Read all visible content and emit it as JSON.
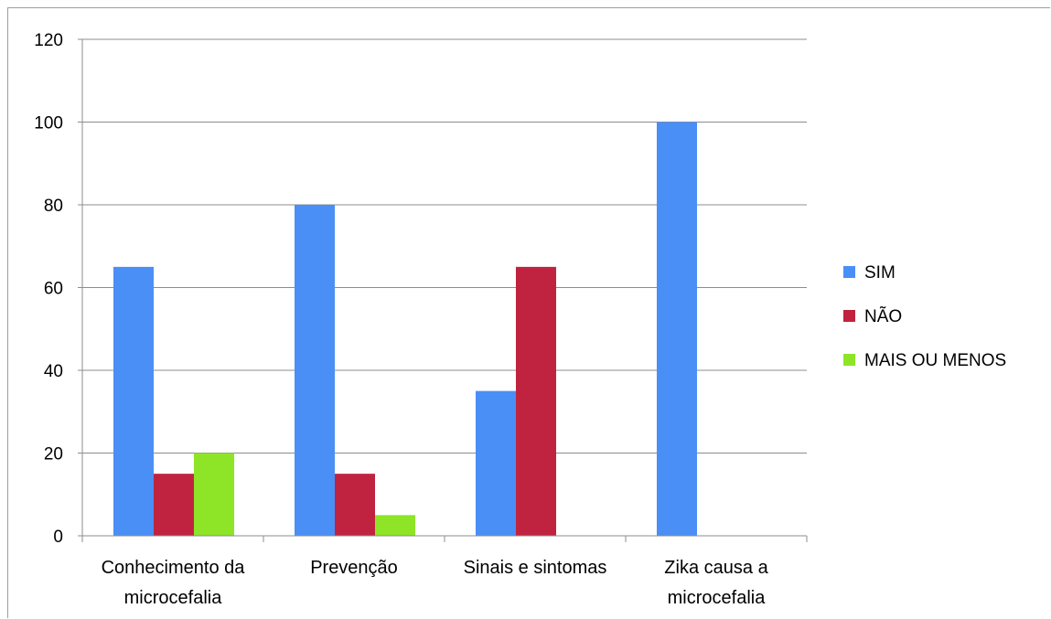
{
  "chart_data": {
    "type": "bar",
    "title": "",
    "xlabel": "",
    "ylabel": "",
    "ylim": [
      0,
      120
    ],
    "yticks": [
      0,
      20,
      40,
      60,
      80,
      100,
      120
    ],
    "categories": [
      [
        "Conhecimento da",
        "microcefalia"
      ],
      [
        "Prevenção"
      ],
      [
        "Sinais e sintomas"
      ],
      [
        "Zika causa a",
        "microcefalia"
      ]
    ],
    "series": [
      {
        "name": "SIM",
        "color": "#4a8ff5",
        "values": [
          65,
          80,
          35,
          100
        ]
      },
      {
        "name": "NÃO",
        "color": "#c0233f",
        "values": [
          15,
          15,
          65,
          0
        ]
      },
      {
        "name": "MAIS OU MENOS",
        "color": "#8ee528",
        "values": [
          20,
          5,
          0,
          0
        ]
      }
    ],
    "grid": true,
    "legend_position": "right"
  }
}
